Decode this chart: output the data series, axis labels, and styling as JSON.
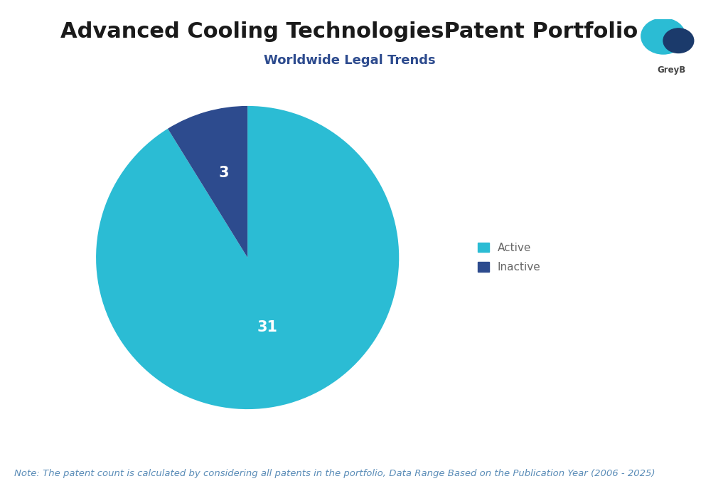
{
  "title": "Advanced Cooling TechnologiesPatent Portfolio",
  "subtitle": "Worldwide Legal Trends",
  "slices": [
    31,
    3
  ],
  "labels": [
    "Active",
    "Inactive"
  ],
  "colors": [
    "#2BBCD4",
    "#2D4B8E"
  ],
  "label_values": [
    31,
    3
  ],
  "note": "Note: The patent count is calculated by considering all patents in the portfolio, Data Range Based on the Publication Year (2006 - 2025)",
  "note_color": "#5B8DB8",
  "title_fontsize": 22,
  "subtitle_fontsize": 13,
  "subtitle_color": "#2D4B8E",
  "legend_fontsize": 11,
  "note_fontsize": 9.5,
  "background_color": "#ffffff",
  "startangle": 90
}
